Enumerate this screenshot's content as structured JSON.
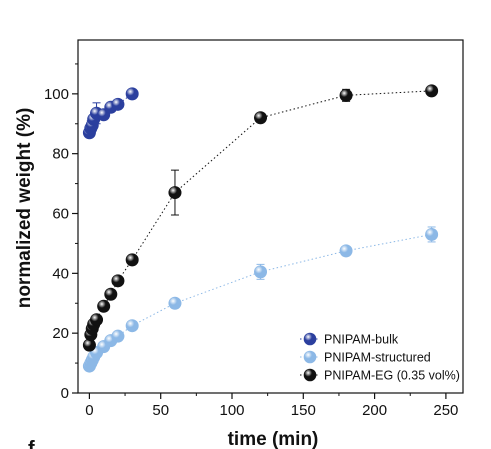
{
  "chart_data": {
    "type": "scatter",
    "xlabel": "time (min)",
    "ylabel": "normalized weight (%)",
    "xlim": [
      -8,
      262
    ],
    "ylim": [
      0,
      118
    ],
    "xticks": [
      0,
      50,
      100,
      150,
      200,
      250
    ],
    "yticks": [
      0,
      20,
      40,
      60,
      80,
      100
    ],
    "grid": false,
    "legend_position": "bottom-right",
    "panel_letter": "f",
    "series": [
      {
        "name": "PNIPAM-bulk",
        "color": "#2b3f9e",
        "line": "dotted",
        "points": [
          {
            "x": 0,
            "y": 87,
            "err": 0
          },
          {
            "x": 1,
            "y": 88.5,
            "err": 2.5
          },
          {
            "x": 2,
            "y": 89.5,
            "err": 0
          },
          {
            "x": 3,
            "y": 91.5,
            "err": 0
          },
          {
            "x": 5,
            "y": 93.5,
            "err": 3.5
          },
          {
            "x": 10,
            "y": 93,
            "err": 0
          },
          {
            "x": 15,
            "y": 95.5,
            "err": 0
          },
          {
            "x": 20,
            "y": 96.5,
            "err": 0
          },
          {
            "x": 30,
            "y": 100,
            "err": 0
          }
        ]
      },
      {
        "name": "PNIPAM-structured",
        "color": "#8cb8e6",
        "line": "dotted",
        "points": [
          {
            "x": 0,
            "y": 9,
            "err": 0
          },
          {
            "x": 1,
            "y": 10,
            "err": 0
          },
          {
            "x": 2,
            "y": 11,
            "err": 0
          },
          {
            "x": 3,
            "y": 12,
            "err": 0
          },
          {
            "x": 5,
            "y": 13.5,
            "err": 0
          },
          {
            "x": 10,
            "y": 15.5,
            "err": 0
          },
          {
            "x": 15,
            "y": 17.5,
            "err": 0
          },
          {
            "x": 20,
            "y": 19,
            "err": 0
          },
          {
            "x": 30,
            "y": 22.5,
            "err": 0
          },
          {
            "x": 60,
            "y": 30,
            "err": 0
          },
          {
            "x": 120,
            "y": 40.5,
            "err": 2.5
          },
          {
            "x": 180,
            "y": 47.5,
            "err": 0
          },
          {
            "x": 240,
            "y": 53,
            "err": 2.5
          }
        ]
      },
      {
        "name": "PNIPAM-EG (0.35 vol%)",
        "color": "#111111",
        "line": "dotted",
        "points": [
          {
            "x": 0,
            "y": 16,
            "err": 0
          },
          {
            "x": 1,
            "y": 19.5,
            "err": 0
          },
          {
            "x": 2,
            "y": 21.5,
            "err": 0
          },
          {
            "x": 3,
            "y": 23,
            "err": 0
          },
          {
            "x": 5,
            "y": 24.5,
            "err": 0
          },
          {
            "x": 10,
            "y": 29,
            "err": 0
          },
          {
            "x": 15,
            "y": 33,
            "err": 0
          },
          {
            "x": 20,
            "y": 37.5,
            "err": 0
          },
          {
            "x": 30,
            "y": 44.5,
            "err": 0
          },
          {
            "x": 60,
            "y": 67,
            "err": 7.5
          },
          {
            "x": 120,
            "y": 92,
            "err": 0
          },
          {
            "x": 180,
            "y": 99.5,
            "err": 2
          },
          {
            "x": 240,
            "y": 101,
            "err": 0
          }
        ]
      }
    ]
  }
}
